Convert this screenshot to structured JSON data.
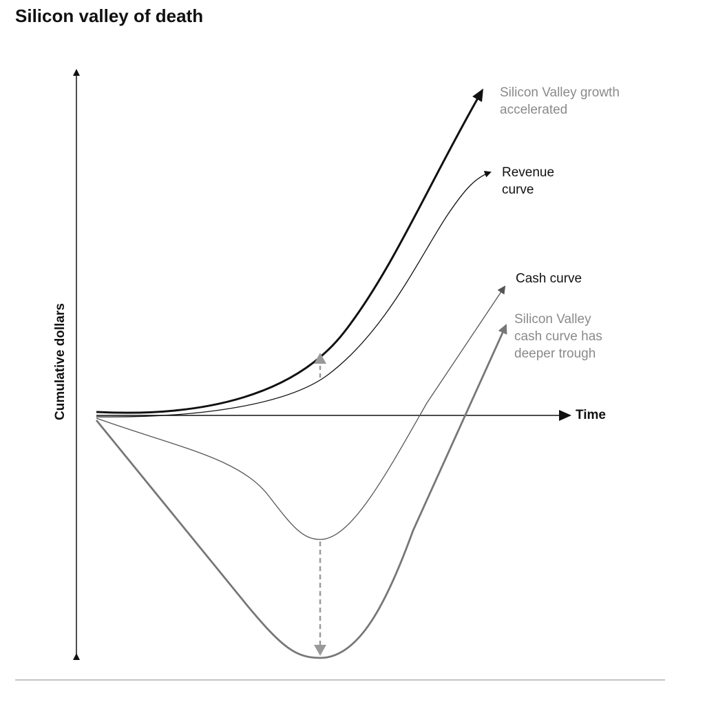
{
  "title": "Silicon valley of death",
  "axes": {
    "x_label": "Time",
    "y_label": "Cumulative dollars"
  },
  "labels": {
    "sv_growth": "Silicon Valley growth accelerated",
    "revenue": "Revenue curve",
    "cash": "Cash curve",
    "sv_cash": "Silicon Valley cash curve has deeper trough"
  },
  "colors": {
    "black": "#111111",
    "gray_text": "#8a8a8a",
    "sv_cash_line": "#777777",
    "cash_line": "#555555",
    "dashed": "#999999"
  }
}
